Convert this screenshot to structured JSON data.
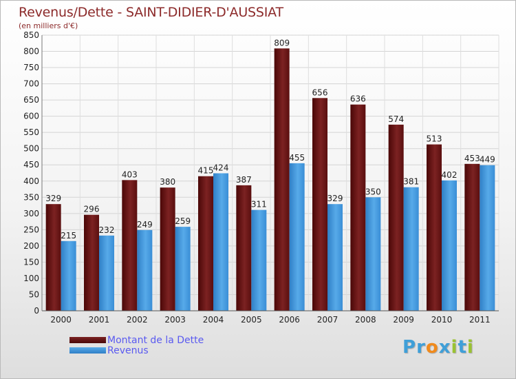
{
  "header": {
    "title": "Revenus/Dette - SAINT-DIDIER-D'AUSSIAT",
    "subtitle": "(en milliers d'€)"
  },
  "legend": {
    "items": [
      {
        "label": "Montant de la Dette",
        "color": "#6e1616"
      },
      {
        "label": "Revenus",
        "color": "#4b9fe3"
      }
    ]
  },
  "brand": {
    "letters": [
      "P",
      "r",
      "o",
      "x",
      "i",
      "t",
      "i"
    ],
    "colors": [
      "#3f9fd8",
      "#3f9fd8",
      "#f08a1c",
      "#3f9fd8",
      "#9ac232",
      "#3f9fd8",
      "#9ac232"
    ]
  },
  "chart_data": {
    "type": "bar",
    "categories": [
      "2000",
      "2001",
      "2002",
      "2003",
      "2004",
      "2005",
      "2006",
      "2007",
      "2008",
      "2009",
      "2010",
      "2011"
    ],
    "series": [
      {
        "name": "Montant de la Dette",
        "color": "#6e1616",
        "values": [
          329,
          296,
          403,
          380,
          415,
          387,
          809,
          656,
          636,
          574,
          513,
          453
        ]
      },
      {
        "name": "Revenus",
        "color": "#4b9fe3",
        "values": [
          215,
          232,
          249,
          259,
          424,
          311,
          455,
          329,
          350,
          381,
          402,
          449
        ]
      }
    ],
    "ylim": [
      0,
      850
    ],
    "yticks": [
      0,
      50,
      100,
      150,
      200,
      250,
      300,
      350,
      400,
      450,
      500,
      550,
      600,
      650,
      700,
      750,
      800,
      850
    ],
    "grid": true,
    "legend_position": "bottom-left"
  }
}
